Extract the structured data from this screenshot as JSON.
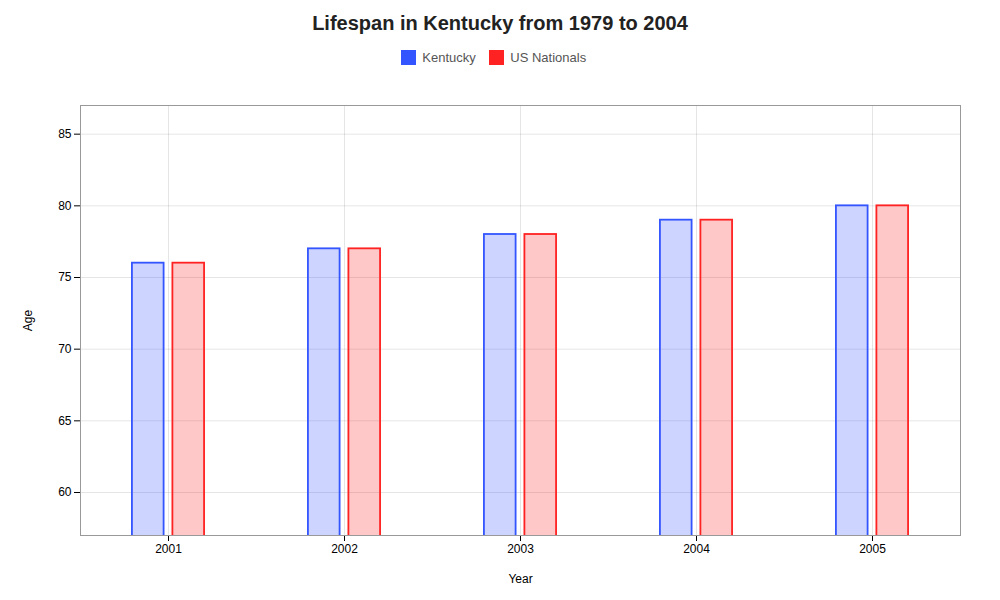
{
  "chart_data": {
    "type": "bar",
    "title": "Lifespan in Kentucky from 1979 to 2004",
    "xlabel": "Year",
    "ylabel": "Age",
    "categories": [
      "2001",
      "2002",
      "2003",
      "2004",
      "2005"
    ],
    "series": [
      {
        "name": "Kentucky",
        "color": "#3355ff",
        "values": [
          76,
          77,
          78,
          79,
          80
        ]
      },
      {
        "name": "US Nationals",
        "color": "#ff2222",
        "values": [
          76,
          77,
          78,
          79,
          80
        ]
      }
    ],
    "ylim": [
      57,
      87
    ],
    "yticks": [
      60,
      65,
      70,
      75,
      80,
      85
    ],
    "grid": true,
    "legend": "top"
  }
}
